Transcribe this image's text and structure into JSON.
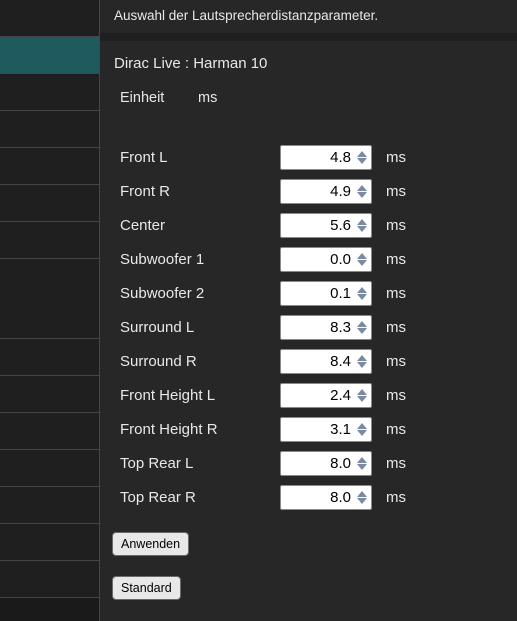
{
  "header": {
    "title": "Auswahl der Lautsprecherdistanzparameter."
  },
  "dirac": {
    "subtitle": "Dirac Live : Harman 10"
  },
  "unit": {
    "label": "Einheit",
    "value": "ms"
  },
  "channels": [
    {
      "label": "Front L",
      "value": "4.8",
      "unit": "ms"
    },
    {
      "label": "Front R",
      "value": "4.9",
      "unit": "ms"
    },
    {
      "label": "Center",
      "value": "5.6",
      "unit": "ms"
    },
    {
      "label": "Subwoofer 1",
      "value": "0.0",
      "unit": "ms"
    },
    {
      "label": "Subwoofer 2",
      "value": "0.1",
      "unit": "ms"
    },
    {
      "label": "Surround L",
      "value": "8.3",
      "unit": "ms"
    },
    {
      "label": "Surround R",
      "value": "8.4",
      "unit": "ms"
    },
    {
      "label": "Front Height L",
      "value": "2.4",
      "unit": "ms"
    },
    {
      "label": "Front Height R",
      "value": "3.1",
      "unit": "ms"
    },
    {
      "label": "Top Rear L",
      "value": "8.0",
      "unit": "ms"
    },
    {
      "label": "Top Rear R",
      "value": "8.0",
      "unit": "ms"
    }
  ],
  "buttons": {
    "apply": "Anwenden",
    "default": "Standard"
  }
}
